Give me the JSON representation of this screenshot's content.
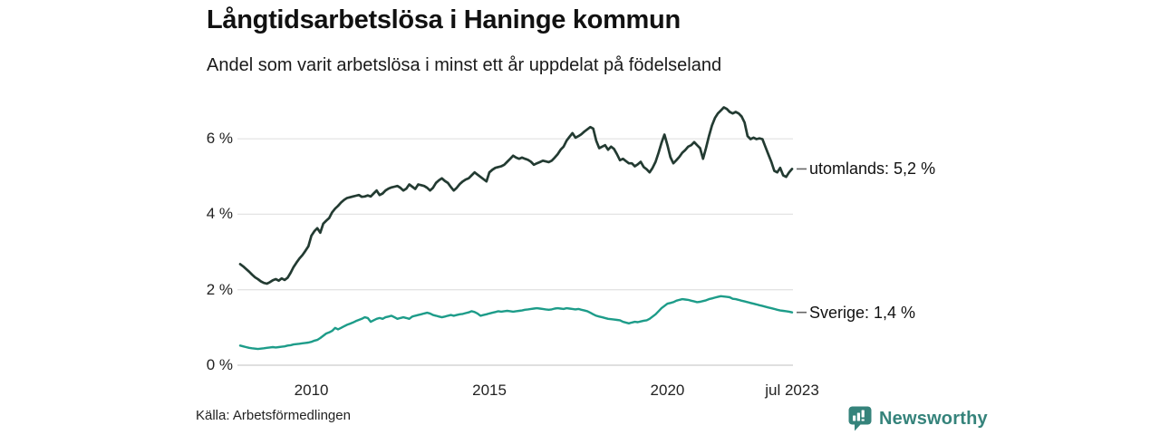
{
  "header": {
    "title": "Långtidsarbetslösa i Haninge kommun",
    "subtitle": "Andel som varit arbetslösa i minst ett år uppdelat på födelseland"
  },
  "footer": {
    "source": "Källa: Arbetsförmedlingen",
    "brand": "Newsworthy"
  },
  "colors": {
    "background": "#ffffff",
    "text": "#1a1a1a",
    "grid": "#e4e4e4",
    "zero_line": "#cccccc",
    "tick_dash": "#666666",
    "brand_teal": "#35837b"
  },
  "chart_data": {
    "type": "line",
    "title": "Långtidsarbetslösa i Haninge kommun",
    "subtitle": "Andel som varit arbetslösa i minst ett år uppdelat på födelseland",
    "xlabel": "",
    "ylabel": "",
    "unit": "%",
    "frequency": "monthly",
    "x_start": "2008-01",
    "x_end": "2023-07",
    "ylim": [
      0,
      7.2
    ],
    "grid": true,
    "legend_position": "right-end-labels",
    "y_ticks": [
      {
        "label": "0 %",
        "value": 0
      },
      {
        "label": "2 %",
        "value": 2
      },
      {
        "label": "4 %",
        "value": 4
      },
      {
        "label": "6 %",
        "value": 6
      }
    ],
    "x_ticks": [
      {
        "label": "2010",
        "year": 2010
      },
      {
        "label": "2015",
        "year": 2015
      },
      {
        "label": "2020",
        "year": 2020
      },
      {
        "label": "jul 2023",
        "year": 2023.5
      }
    ],
    "series": [
      {
        "name": "utomlands",
        "label": "utomlands: 5,2 %",
        "end_value": 5.2,
        "color": "#233b32",
        "values": [
          2.68,
          2.62,
          2.55,
          2.48,
          2.4,
          2.33,
          2.28,
          2.22,
          2.18,
          2.16,
          2.2,
          2.25,
          2.28,
          2.24,
          2.3,
          2.26,
          2.32,
          2.45,
          2.6,
          2.72,
          2.83,
          2.92,
          3.03,
          3.15,
          3.43,
          3.55,
          3.63,
          3.51,
          3.75,
          3.83,
          3.9,
          4.05,
          4.15,
          4.22,
          4.31,
          4.38,
          4.43,
          4.45,
          4.47,
          4.49,
          4.51,
          4.46,
          4.47,
          4.5,
          4.47,
          4.55,
          4.63,
          4.51,
          4.55,
          4.63,
          4.68,
          4.71,
          4.73,
          4.75,
          4.7,
          4.63,
          4.68,
          4.79,
          4.73,
          4.67,
          4.79,
          4.77,
          4.75,
          4.7,
          4.63,
          4.7,
          4.83,
          4.9,
          4.95,
          4.88,
          4.83,
          4.72,
          4.63,
          4.7,
          4.8,
          4.87,
          4.92,
          4.95,
          5.03,
          5.11,
          5.05,
          4.99,
          4.93,
          4.87,
          5.11,
          5.18,
          5.23,
          5.25,
          5.27,
          5.31,
          5.39,
          5.47,
          5.55,
          5.5,
          5.47,
          5.5,
          5.47,
          5.44,
          5.39,
          5.31,
          5.35,
          5.38,
          5.42,
          5.4,
          5.38,
          5.42,
          5.5,
          5.59,
          5.71,
          5.79,
          5.95,
          6.05,
          6.15,
          6.03,
          6.07,
          6.12,
          6.19,
          6.25,
          6.31,
          6.27,
          5.95,
          5.75,
          5.79,
          5.83,
          5.71,
          5.79,
          5.73,
          5.59,
          5.43,
          5.47,
          5.41,
          5.35,
          5.35,
          5.27,
          5.32,
          5.39,
          5.25,
          5.19,
          5.11,
          5.23,
          5.39,
          5.63,
          5.89,
          6.11,
          5.83,
          5.51,
          5.35,
          5.43,
          5.52,
          5.63,
          5.7,
          5.79,
          5.83,
          5.91,
          5.83,
          5.75,
          5.47,
          5.75,
          6.07,
          6.35,
          6.55,
          6.67,
          6.75,
          6.83,
          6.79,
          6.71,
          6.67,
          6.71,
          6.67,
          6.59,
          6.43,
          6.07,
          5.99,
          6.03,
          5.99,
          6.01,
          5.99,
          5.79,
          5.59,
          5.39,
          5.15,
          5.11,
          5.23,
          5.03,
          4.99,
          5.11,
          5.2
        ]
      },
      {
        "name": "Sverige",
        "label": "Sverige: 1,4 %",
        "end_value": 1.4,
        "color": "#1d9c89",
        "values": [
          0.52,
          0.5,
          0.48,
          0.46,
          0.45,
          0.44,
          0.43,
          0.44,
          0.45,
          0.46,
          0.47,
          0.48,
          0.47,
          0.48,
          0.49,
          0.5,
          0.52,
          0.53,
          0.55,
          0.56,
          0.57,
          0.58,
          0.59,
          0.6,
          0.62,
          0.65,
          0.67,
          0.72,
          0.78,
          0.84,
          0.87,
          0.91,
          0.99,
          0.95,
          0.99,
          1.03,
          1.07,
          1.1,
          1.13,
          1.17,
          1.2,
          1.23,
          1.27,
          1.25,
          1.15,
          1.19,
          1.23,
          1.25,
          1.23,
          1.27,
          1.29,
          1.31,
          1.27,
          1.23,
          1.25,
          1.27,
          1.25,
          1.23,
          1.29,
          1.31,
          1.33,
          1.35,
          1.37,
          1.39,
          1.37,
          1.33,
          1.31,
          1.29,
          1.27,
          1.29,
          1.31,
          1.33,
          1.31,
          1.33,
          1.35,
          1.36,
          1.38,
          1.4,
          1.43,
          1.41,
          1.37,
          1.31,
          1.33,
          1.35,
          1.37,
          1.39,
          1.41,
          1.43,
          1.42,
          1.43,
          1.44,
          1.43,
          1.42,
          1.43,
          1.44,
          1.45,
          1.47,
          1.48,
          1.49,
          1.5,
          1.51,
          1.5,
          1.49,
          1.48,
          1.47,
          1.48,
          1.5,
          1.51,
          1.5,
          1.49,
          1.51,
          1.5,
          1.49,
          1.48,
          1.49,
          1.47,
          1.45,
          1.43,
          1.39,
          1.35,
          1.31,
          1.29,
          1.27,
          1.25,
          1.23,
          1.22,
          1.21,
          1.2,
          1.19,
          1.15,
          1.13,
          1.11,
          1.13,
          1.15,
          1.14,
          1.16,
          1.18,
          1.19,
          1.23,
          1.29,
          1.35,
          1.43,
          1.51,
          1.57,
          1.63,
          1.65,
          1.67,
          1.71,
          1.73,
          1.75,
          1.74,
          1.73,
          1.71,
          1.69,
          1.67,
          1.68,
          1.7,
          1.72,
          1.75,
          1.77,
          1.79,
          1.81,
          1.83,
          1.82,
          1.81,
          1.8,
          1.76,
          1.75,
          1.73,
          1.71,
          1.69,
          1.67,
          1.65,
          1.63,
          1.61,
          1.59,
          1.57,
          1.55,
          1.53,
          1.51,
          1.49,
          1.47,
          1.45,
          1.44,
          1.43,
          1.42,
          1.4
        ]
      }
    ]
  }
}
